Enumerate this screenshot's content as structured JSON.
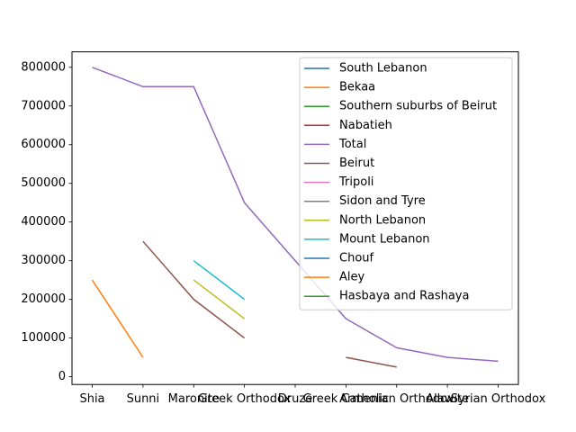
{
  "chart_data": {
    "type": "line",
    "title": "",
    "xlabel": "",
    "ylabel": "",
    "categories": [
      "Shia",
      "Sunni",
      "Maronite",
      "Greek Orthodox",
      "Druze",
      "Greek Catholic",
      "Armenian Orthodox",
      "Alawite",
      "Syrian Orthodox"
    ],
    "ylim": [
      -20000,
      840000
    ],
    "yticks": [
      0,
      100000,
      200000,
      300000,
      400000,
      500000,
      600000,
      700000,
      800000
    ],
    "grid": false,
    "legend_position": "upper-right",
    "series": [
      {
        "name": "South Lebanon",
        "color": "#1f77b4",
        "values": [
          null,
          null,
          null,
          null,
          null,
          null,
          null,
          null,
          null
        ]
      },
      {
        "name": "Bekaa",
        "color": "#ff7f0e",
        "values": [
          250000,
          50000,
          null,
          null,
          null,
          null,
          null,
          null,
          null
        ]
      },
      {
        "name": "Southern suburbs of Beirut",
        "color": "#2ca02c",
        "values": [
          null,
          null,
          null,
          null,
          null,
          null,
          null,
          null,
          null
        ]
      },
      {
        "name": "Nabatieh",
        "color": "#d62728",
        "values": [
          null,
          null,
          null,
          null,
          null,
          null,
          null,
          null,
          null
        ]
      },
      {
        "name": "Total",
        "color": "#9467bd",
        "values": [
          800000,
          750000,
          750000,
          450000,
          300000,
          150000,
          75000,
          50000,
          40000
        ]
      },
      {
        "name": "Beirut",
        "color": "#8c564b",
        "values": [
          null,
          350000,
          200000,
          100000,
          null,
          50000,
          25000,
          null,
          null
        ]
      },
      {
        "name": "Tripoli",
        "color": "#e377c2",
        "values": [
          null,
          null,
          null,
          null,
          null,
          null,
          null,
          null,
          null
        ]
      },
      {
        "name": "Sidon and Tyre",
        "color": "#7f7f7f",
        "values": [
          null,
          null,
          null,
          null,
          null,
          null,
          null,
          null,
          null
        ]
      },
      {
        "name": "North Lebanon",
        "color": "#bcbd22",
        "values": [
          null,
          null,
          250000,
          150000,
          null,
          null,
          null,
          null,
          null
        ]
      },
      {
        "name": "Mount Lebanon",
        "color": "#17becf",
        "values": [
          null,
          null,
          300000,
          200000,
          null,
          null,
          null,
          null,
          null
        ]
      },
      {
        "name": "Chouf",
        "color": "#1f77b4",
        "values": [
          null,
          null,
          null,
          null,
          null,
          null,
          null,
          null,
          null
        ]
      },
      {
        "name": "Aley",
        "color": "#ff7f0e",
        "values": [
          null,
          null,
          null,
          null,
          null,
          null,
          null,
          null,
          null
        ]
      },
      {
        "name": "Hasbaya and Rashaya",
        "color": "#2ca02c",
        "values": [
          null,
          null,
          null,
          null,
          null,
          null,
          null,
          null,
          null
        ]
      }
    ]
  }
}
